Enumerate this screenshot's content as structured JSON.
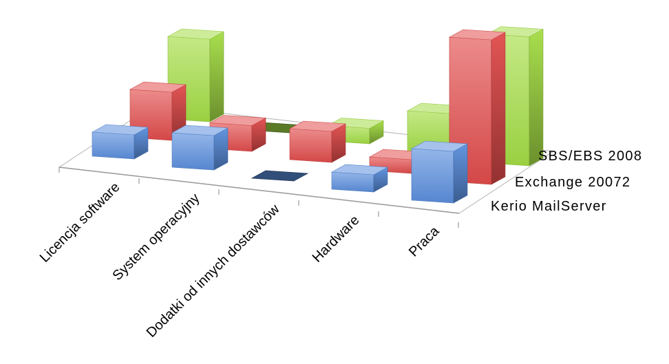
{
  "chart_data": {
    "type": "bar",
    "categories": [
      "Licencja software",
      "System operacyjny",
      "Dodatki od innych dostawców",
      "Hardware",
      "Praca"
    ],
    "series": [
      {
        "name": "Kerio MailServer",
        "values": [
          14,
          20,
          0,
          10,
          30
        ],
        "color": "#5b8fdd"
      },
      {
        "name": "Exchange 20072",
        "values": [
          28,
          15,
          18,
          8,
          84
        ],
        "color": "#e24c4c"
      },
      {
        "name": "SBS/EBS 2008",
        "values": [
          48,
          0,
          9,
          24,
          75
        ],
        "color": "#a4dd45"
      }
    ],
    "ylim": [
      0,
      100
    ],
    "grid": false,
    "legend": "none"
  }
}
